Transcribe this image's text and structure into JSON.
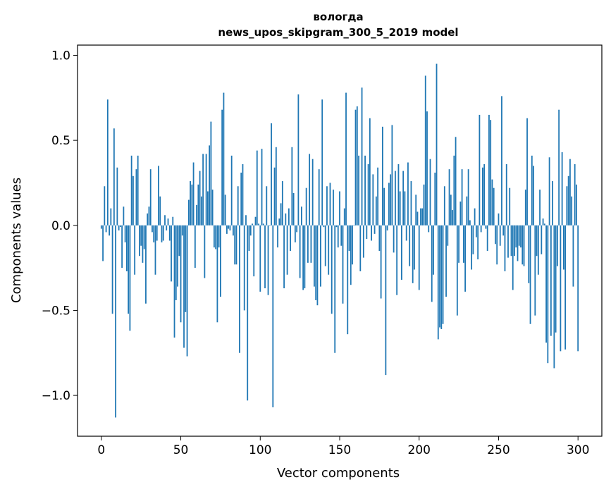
{
  "chart_data": {
    "type": "bar",
    "title": "вологда",
    "subtitle": "news_upos_skipgram_300_5_2019 model",
    "xlabel": "Vector components",
    "ylabel": "Components values",
    "xlim": [
      -15,
      315
    ],
    "ylim": [
      -1.24,
      1.06
    ],
    "xticks": [
      0,
      50,
      100,
      150,
      200,
      250,
      300
    ],
    "xtick_labels": [
      "0",
      "50",
      "100",
      "150",
      "200",
      "250",
      "300"
    ],
    "yticks": [
      -1.0,
      -0.5,
      0.0,
      0.5,
      1.0
    ],
    "ytick_labels": [
      "−1.0",
      "−0.5",
      "0.0",
      "0.5",
      "1.0"
    ],
    "grid": false,
    "bar_color": "#1f77b4",
    "values": [
      -0.02,
      -0.21,
      0.23,
      -0.04,
      0.74,
      -0.06,
      0.1,
      -0.52,
      0.57,
      -1.13,
      0.34,
      -0.03,
      -0.01,
      -0.25,
      0.11,
      -0.1,
      -0.27,
      -0.52,
      -0.62,
      0.41,
      0.29,
      -0.29,
      0.33,
      0.41,
      -0.18,
      -0.12,
      -0.22,
      -0.14,
      -0.46,
      0.07,
      0.11,
      0.33,
      -0.04,
      -0.1,
      -0.29,
      -0.09,
      0.35,
      0.17,
      -0.1,
      -0.09,
      0.06,
      -0.03,
      0.04,
      -0.09,
      -0.33,
      0.05,
      -0.66,
      -0.44,
      -0.36,
      -0.18,
      -0.57,
      -0.06,
      -0.72,
      -0.51,
      -0.77,
      0.15,
      0.26,
      0.24,
      0.37,
      -0.25,
      0.12,
      0.24,
      0.32,
      0.17,
      0.42,
      -0.31,
      0.42,
      0.2,
      0.47,
      0.61,
      0.21,
      -0.13,
      -0.14,
      -0.57,
      -0.13,
      -0.42,
      0.68,
      0.78,
      0.18,
      -0.05,
      -0.02,
      -0.03,
      0.41,
      -0.06,
      -0.23,
      -0.23,
      0.23,
      -0.75,
      0.31,
      0.36,
      -0.5,
      0.06,
      -1.03,
      -0.15,
      -0.06,
      0.01,
      -0.3,
      0.05,
      0.44,
      0.01,
      -0.39,
      0.45,
      0.01,
      -0.37,
      0.23,
      -0.41,
      0.0,
      0.6,
      -1.07,
      0.34,
      0.46,
      -0.13,
      0.04,
      0.13,
      0.26,
      -0.37,
      0.07,
      -0.29,
      0.1,
      -0.15,
      0.46,
      0.19,
      -0.1,
      -0.04,
      0.77,
      -0.31,
      0.11,
      -0.38,
      -0.37,
      0.22,
      -0.22,
      0.42,
      -0.22,
      0.39,
      -0.36,
      -0.44,
      -0.47,
      0.33,
      -0.36,
      0.74,
      -0.01,
      -0.24,
      0.23,
      -0.29,
      0.25,
      -0.52,
      0.21,
      -0.75,
      -0.01,
      -0.13,
      0.2,
      -0.12,
      -0.46,
      0.1,
      0.78,
      -0.64,
      -0.15,
      -0.35,
      -0.23,
      0.0,
      0.68,
      0.7,
      0.41,
      -0.27,
      0.81,
      -0.19,
      0.41,
      -0.08,
      0.36,
      0.63,
      -0.09,
      0.3,
      -0.05,
      0.17,
      0.34,
      -0.15,
      -0.43,
      0.58,
      0.22,
      -0.88,
      -0.03,
      0.25,
      0.3,
      0.59,
      -0.16,
      0.32,
      -0.41,
      0.36,
      0.2,
      -0.32,
      0.32,
      0.2,
      -0.09,
      0.37,
      -0.24,
      0.26,
      -0.34,
      -0.26,
      0.18,
      0.08,
      -0.38,
      0.1,
      0.1,
      0.24,
      0.88,
      0.67,
      -0.04,
      0.39,
      -0.45,
      -0.29,
      0.31,
      0.95,
      -0.67,
      -0.6,
      -0.61,
      -0.58,
      0.23,
      -0.42,
      -0.12,
      0.33,
      0.18,
      0.09,
      0.41,
      0.52,
      -0.53,
      -0.22,
      0.14,
      0.33,
      -0.22,
      -0.39,
      0.17,
      0.33,
      0.03,
      -0.26,
      -0.17,
      0.1,
      -0.07,
      -0.2,
      0.65,
      -0.04,
      0.34,
      0.36,
      -0.02,
      -0.15,
      0.65,
      0.62,
      0.27,
      0.22,
      -0.11,
      -0.23,
      0.07,
      -0.12,
      0.76,
      -0.06,
      -0.27,
      0.36,
      -0.19,
      0.22,
      -0.18,
      -0.38,
      -0.18,
      -0.13,
      -0.21,
      -0.12,
      -0.13,
      -0.23,
      -0.24,
      0.21,
      0.63,
      -0.34,
      -0.58,
      0.41,
      0.35,
      -0.53,
      -0.18,
      -0.29,
      0.21,
      -0.17,
      0.04,
      0.01,
      -0.69,
      -0.81,
      0.4,
      -0.65,
      0.26,
      -0.84,
      -0.63,
      -0.24,
      0.68,
      -0.74,
      0.43,
      -0.26,
      -0.73,
      0.23,
      0.29,
      0.39,
      0.17,
      -0.36,
      0.36,
      0.24,
      -0.74
    ]
  }
}
